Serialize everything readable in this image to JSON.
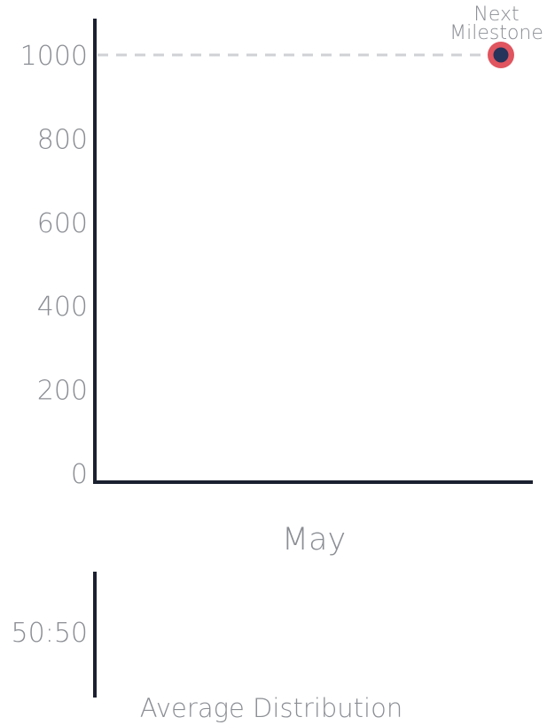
{
  "chart_data": [
    {
      "type": "scatter",
      "title": "",
      "xlabel": "May",
      "ylabel": "",
      "ylim": [
        0,
        1000
      ],
      "yticks": [
        0,
        200,
        400,
        600,
        800,
        1000
      ],
      "grid": false,
      "milestone": {
        "value": 1000,
        "label_line1": "Next",
        "label_line2": "Milestone"
      },
      "points": [
        {
          "y": 1000
        }
      ]
    },
    {
      "type": "bar",
      "title": "",
      "xlabel": "Average Distribution",
      "ylabel": "",
      "tick_label": "50:50"
    }
  ],
  "colors": {
    "axis": "#1b2130",
    "tick_text": "#8a8d93",
    "dash": "#cfd1d4",
    "point_fill": "#26335a",
    "point_ring": "#e0555f"
  }
}
